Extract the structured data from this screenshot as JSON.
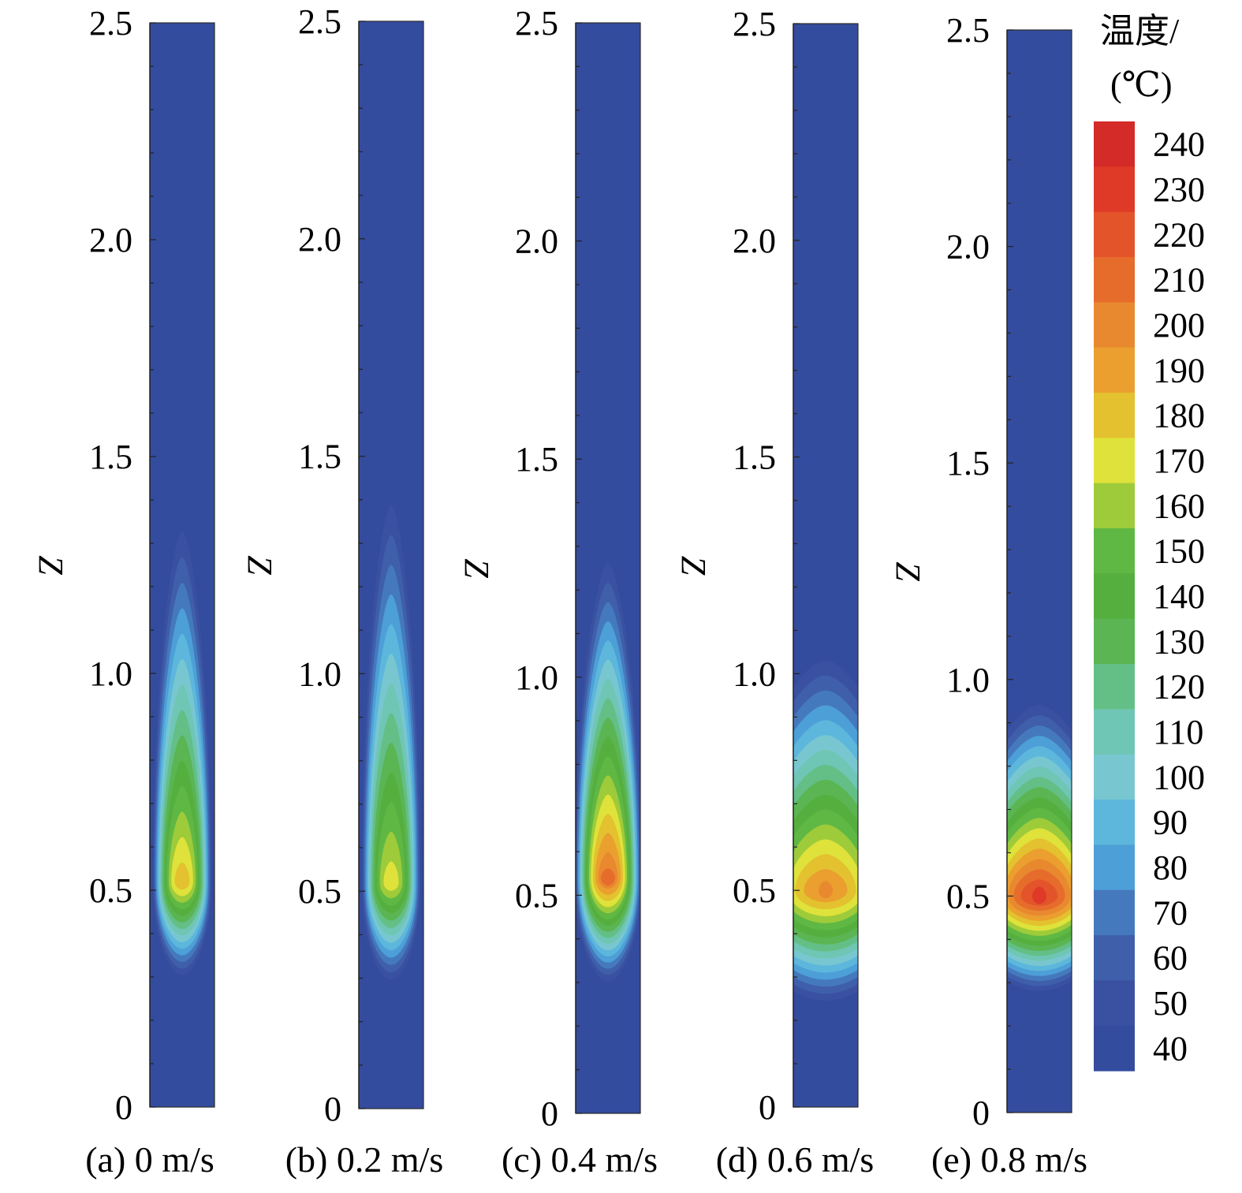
{
  "chart_data": {
    "type": "heatmap",
    "colorbar": {
      "title_line1": "温度/",
      "title_line2": "(℃)",
      "ticks": [
        "240",
        "230",
        "220",
        "210",
        "200",
        "190",
        "180",
        "170",
        "160",
        "150",
        "140",
        "130",
        "120",
        "110",
        "100",
        "90",
        "80",
        "70",
        "60",
        "50",
        "40"
      ],
      "range": [
        40,
        240
      ],
      "colors": [
        "#d42a28",
        "#de3a27",
        "#e4542a",
        "#e66c2c",
        "#e9892f",
        "#ea9f2f",
        "#e3c12f",
        "#dfe23a",
        "#9ecb3a",
        "#5fb843",
        "#55af3f",
        "#5ab552",
        "#63bf86",
        "#6fc6b4",
        "#78c7d0",
        "#5db7dc",
        "#4d9fd7",
        "#4579bd",
        "#3f5fab",
        "#3a51a2",
        "#344c9e"
      ]
    },
    "axis_title": "Z",
    "y_ticks": [
      "0",
      "0.5",
      "1.0",
      "1.5",
      "2.0",
      "2.5"
    ],
    "ylim": [
      0,
      2.5
    ],
    "panels": [
      {
        "label": "(a) 0 m/s",
        "hot_center_z": 0.52,
        "peak_temp": 185,
        "extent_above": 0.85,
        "extent_below": 0.22,
        "width_factor": 0.7
      },
      {
        "label": "(b) 0.2 m/s",
        "hot_center_z": 0.52,
        "peak_temp": 175,
        "extent_above": 0.92,
        "extent_below": 0.23,
        "width_factor": 0.7
      },
      {
        "label": "(c) 0.4 m/s",
        "hot_center_z": 0.54,
        "peak_temp": 210,
        "extent_above": 0.75,
        "extent_below": 0.24,
        "width_factor": 0.8
      },
      {
        "label": "(d) 0.6 m/s",
        "hot_center_z": 0.5,
        "peak_temp": 200,
        "extent_above": 0.55,
        "extent_below": 0.26,
        "width_factor": 2.2
      },
      {
        "label": "(e) 0.8 m/s",
        "hot_center_z": 0.5,
        "peak_temp": 230,
        "extent_above": 0.45,
        "extent_below": 0.22,
        "width_factor": 2.0
      }
    ]
  }
}
